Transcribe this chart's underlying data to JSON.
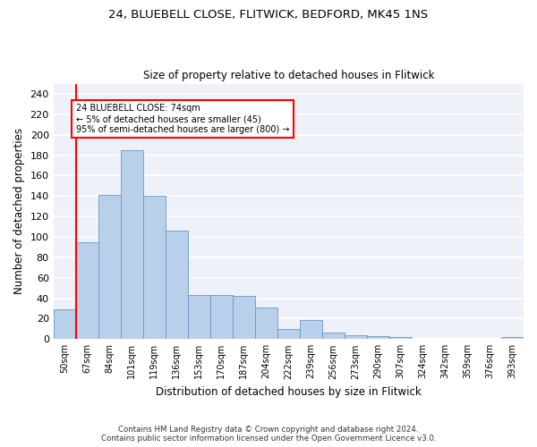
{
  "title1": "24, BLUEBELL CLOSE, FLITWICK, BEDFORD, MK45 1NS",
  "title2": "Size of property relative to detached houses in Flitwick",
  "xlabel": "Distribution of detached houses by size in Flitwick",
  "ylabel": "Number of detached properties",
  "categories": [
    "50sqm",
    "67sqm",
    "84sqm",
    "101sqm",
    "119sqm",
    "136sqm",
    "153sqm",
    "170sqm",
    "187sqm",
    "204sqm",
    "222sqm",
    "239sqm",
    "256sqm",
    "273sqm",
    "290sqm",
    "307sqm",
    "324sqm",
    "342sqm",
    "359sqm",
    "376sqm",
    "393sqm"
  ],
  "values": [
    29,
    95,
    141,
    185,
    140,
    106,
    43,
    43,
    42,
    31,
    10,
    19,
    6,
    4,
    3,
    2,
    0,
    0,
    0,
    0,
    2
  ],
  "bar_color": "#b8d0ea",
  "bar_edge_color": "#6699cc",
  "annotation_text1": "24 BLUEBELL CLOSE: 74sqm",
  "annotation_text2": "← 5% of detached houses are smaller (45)",
  "annotation_text3": "95% of semi-detached houses are larger (800) →",
  "red_line_x": 0.5,
  "ylim": [
    0,
    250
  ],
  "yticks": [
    0,
    20,
    40,
    60,
    80,
    100,
    120,
    140,
    160,
    180,
    200,
    220,
    240
  ],
  "background_color": "#eef2f8",
  "grid_color": "#ffffff",
  "footer1": "Contains HM Land Registry data © Crown copyright and database right 2024.",
  "footer2": "Contains public sector information licensed under the Open Government Licence v3.0."
}
